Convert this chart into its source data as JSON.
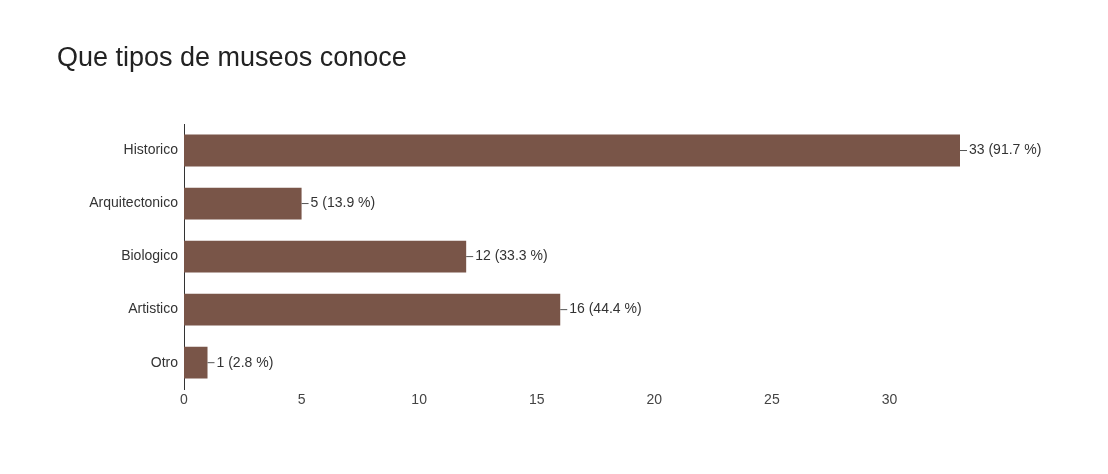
{
  "chart_data": {
    "type": "bar",
    "orientation": "horizontal",
    "title": "Que tipos de museos conoce",
    "categories": [
      "Historico",
      "Arquitectonico",
      "Biologico",
      "Artistico",
      "Otro"
    ],
    "values": [
      33,
      5,
      12,
      16,
      1
    ],
    "color": "#795548",
    "value_labels": [
      "33 (91.7 %)",
      "5 (13.9 %)",
      "12 (33.3 %)",
      "16 (44.4 %)",
      "1 (2.8 %)"
    ],
    "xlim": [
      0,
      33
    ],
    "xticks": [
      0,
      5,
      10,
      15,
      20,
      25,
      30
    ],
    "grid": false
  }
}
